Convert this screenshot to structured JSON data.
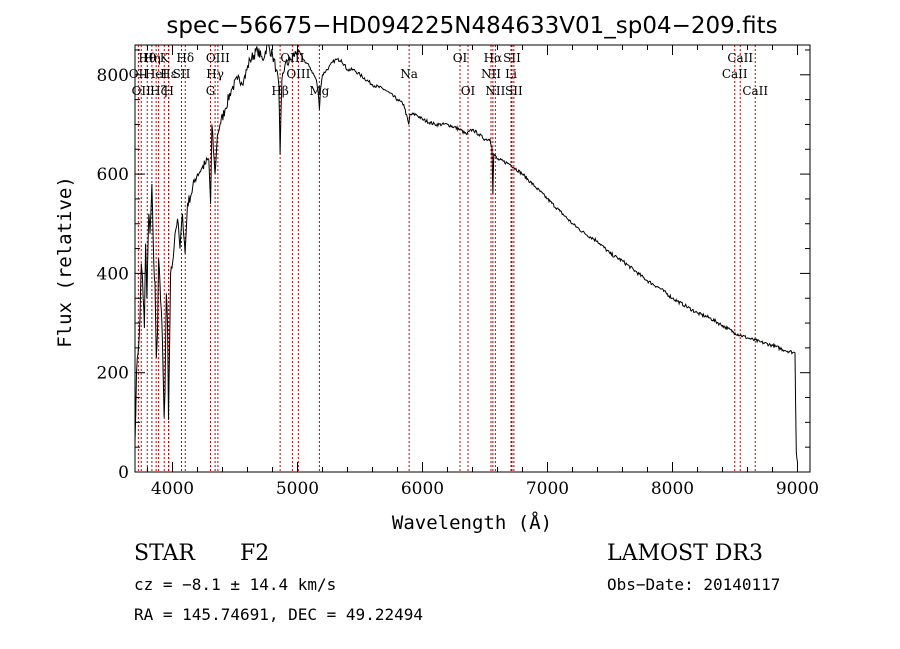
{
  "chart_data": {
    "type": "line",
    "title": "spec−56675−HD094225N484633V01_sp04−209.fits",
    "xlabel": "Wavelength (Å)",
    "ylabel": "Flux (relative)",
    "xlim": [
      3700,
      9100
    ],
    "ylim": [
      0,
      860
    ],
    "x_ticks": [
      4000,
      5000,
      6000,
      7000,
      8000,
      9000
    ],
    "x_tick_labels": [
      "4000",
      "5000",
      "6000",
      "7000",
      "8000",
      "9000"
    ],
    "y_ticks": [
      0,
      200,
      400,
      600,
      800
    ],
    "y_tick_labels": [
      "0",
      "200",
      "400",
      "600",
      "800"
    ],
    "series": [
      {
        "name": "flux",
        "color": "#000000",
        "x": [
          3700,
          3712,
          3725,
          3740,
          3750,
          3760,
          3775,
          3785,
          3795,
          3810,
          3820,
          3835,
          3850,
          3860,
          3870,
          3880,
          3889,
          3900,
          3915,
          3925,
          3933,
          3940,
          3950,
          3960,
          3968,
          3975,
          3985,
          4000,
          4020,
          4040,
          4060,
          4080,
          4101,
          4120,
          4150,
          4180,
          4200,
          4230,
          4260,
          4290,
          4305,
          4315,
          4340,
          4360,
          4380,
          4420,
          4470,
          4520,
          4570,
          4620,
          4680,
          4720,
          4760,
          4800,
          4830,
          4850,
          4861,
          4875,
          4900,
          4950,
          5000,
          5050,
          5100,
          5150,
          5167,
          5175,
          5183,
          5200,
          5250,
          5300,
          5350,
          5400,
          5450,
          5500,
          5600,
          5700,
          5800,
          5850,
          5890,
          5900,
          5950,
          6000,
          6100,
          6200,
          6300,
          6350,
          6400,
          6450,
          6500,
          6540,
          6555,
          6563,
          6570,
          6600,
          6700,
          6800,
          6900,
          7000,
          7100,
          7200,
          7300,
          7400,
          7500,
          7600,
          7700,
          7800,
          7900,
          8000,
          8100,
          8200,
          8300,
          8400,
          8500,
          8600,
          8700,
          8800,
          8900,
          8980,
          8990,
          9000
        ],
        "values": [
          60,
          200,
          240,
          310,
          420,
          390,
          290,
          460,
          350,
          520,
          480,
          580,
          420,
          380,
          230,
          280,
          430,
          380,
          300,
          200,
          110,
          160,
          360,
          300,
          105,
          230,
          400,
          420,
          480,
          510,
          450,
          520,
          440,
          540,
          560,
          590,
          600,
          610,
          620,
          630,
          540,
          700,
          600,
          680,
          700,
          730,
          770,
          790,
          790,
          830,
          850,
          830,
          860,
          840,
          810,
          780,
          640,
          790,
          820,
          830,
          850,
          830,
          815,
          790,
          760,
          730,
          770,
          800,
          815,
          830,
          830,
          810,
          810,
          800,
          780,
          770,
          750,
          740,
          700,
          720,
          720,
          710,
          700,
          700,
          690,
          680,
          690,
          680,
          670,
          670,
          655,
          560,
          640,
          630,
          620,
          600,
          575,
          550,
          525,
          500,
          480,
          465,
          440,
          425,
          405,
          385,
          370,
          350,
          335,
          320,
          310,
          295,
          280,
          270,
          262,
          255,
          245,
          240,
          40,
          20
        ]
      }
    ],
    "lines": [
      {
        "wavelength": 3727,
        "label": "OII",
        "row": 2
      },
      {
        "wavelength": 3750,
        "label": "OII",
        "row": 3
      },
      {
        "wavelength": 3798,
        "label": "Hθ",
        "row": 1
      },
      {
        "wavelength": 3835,
        "label": "Hη",
        "row": 1
      },
      {
        "wavelength": 3869,
        "label": "HeI",
        "row": 2
      },
      {
        "wavelength": 3889,
        "label": "Hζ",
        "row": 3
      },
      {
        "wavelength": 3934,
        "label": "K",
        "row": 1
      },
      {
        "wavelength": 3968,
        "label": "Hε",
        "row": 2
      },
      {
        "wavelength": 3970,
        "label": "H",
        "row": 3
      },
      {
        "wavelength": 4072,
        "label": "SII",
        "row": 2
      },
      {
        "wavelength": 4102,
        "label": "Hδ",
        "row": 1
      },
      {
        "wavelength": 4304,
        "label": "G",
        "row": 3
      },
      {
        "wavelength": 4341,
        "label": "Hγ",
        "row": 2
      },
      {
        "wavelength": 4363,
        "label": "OIII",
        "row": 1
      },
      {
        "wavelength": 4861,
        "label": "Hβ",
        "row": 3
      },
      {
        "wavelength": 4959,
        "label": "OIII",
        "row": 1
      },
      {
        "wavelength": 5007,
        "label": "OIII",
        "row": 2
      },
      {
        "wavelength": 5175,
        "label": "Mg",
        "row": 3
      },
      {
        "wavelength": 5893,
        "label": "Na",
        "row": 2
      },
      {
        "wavelength": 6300,
        "label": "OI",
        "row": 1
      },
      {
        "wavelength": 6364,
        "label": "OI",
        "row": 3
      },
      {
        "wavelength": 6548,
        "label": "NII",
        "row": 2
      },
      {
        "wavelength": 6563,
        "label": "Hα",
        "row": 1
      },
      {
        "wavelength": 6583,
        "label": "NII",
        "row": 3
      },
      {
        "wavelength": 6708,
        "label": "Li",
        "row": 2
      },
      {
        "wavelength": 6716,
        "label": "SII",
        "row": 1
      },
      {
        "wavelength": 6731,
        "label": "SII",
        "row": 3
      },
      {
        "wavelength": 8498,
        "label": "CaII",
        "row": 2
      },
      {
        "wavelength": 8542,
        "label": "CaII",
        "row": 1
      },
      {
        "wavelength": 8662,
        "label": "CaII",
        "row": 3
      }
    ]
  },
  "info": {
    "class": "STAR",
    "subclass": "F2",
    "survey": "LAMOST DR3",
    "cz": "cz = −8.1 ± 14.4 km/s",
    "obs_date": "Obs−Date: 20140117",
    "radec": "RA = 145.74691, DEC =  49.22494"
  },
  "colors": {
    "spectrum": "#000000",
    "line_markers": "#c00000",
    "axes": "#000000",
    "background": "#ffffff"
  }
}
